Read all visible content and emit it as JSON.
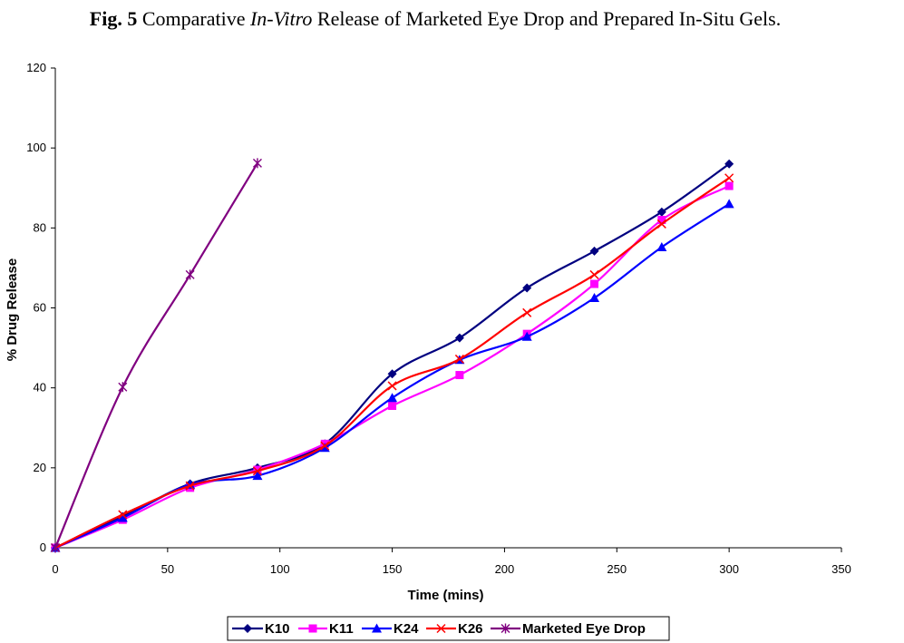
{
  "figure_title": {
    "label": "Fig. 5",
    "pre": " Comparative ",
    "italic": "In-Vitro",
    "post": " Release of Marketed Eye Drop and Prepared In-Situ Gels."
  },
  "chart_data": {
    "type": "line",
    "title": "Fig. 5 Comparative In-Vitro Release of Marketed Eye Drop and Prepared In-Situ Gels.",
    "xlabel": "Time (mins)",
    "ylabel": "% Drug Release",
    "xlim": [
      0,
      350
    ],
    "ylim": [
      0,
      120
    ],
    "xticks": [
      0,
      50,
      100,
      150,
      200,
      250,
      300,
      350
    ],
    "yticks": [
      0,
      20,
      40,
      60,
      80,
      100,
      120
    ],
    "grid": false,
    "legend_position": "bottom",
    "series": [
      {
        "name": "K10",
        "color": "#000080",
        "marker": "diamond",
        "x": [
          0,
          30,
          60,
          90,
          120,
          150,
          180,
          210,
          240,
          270,
          300
        ],
        "y": [
          0,
          7.8,
          16,
          20,
          26,
          43.5,
          52.5,
          65,
          74.2,
          84,
          96
        ]
      },
      {
        "name": "K11",
        "color": "#ff00ff",
        "marker": "square",
        "x": [
          0,
          30,
          60,
          90,
          120,
          150,
          180,
          210,
          240,
          270,
          300
        ],
        "y": [
          0,
          7,
          15,
          19.5,
          26,
          35.5,
          43.2,
          53.5,
          66,
          82,
          90.5
        ]
      },
      {
        "name": "K24",
        "color": "#0000ff",
        "marker": "triangle",
        "x": [
          0,
          30,
          60,
          90,
          120,
          150,
          180,
          210,
          240,
          270,
          300
        ],
        "y": [
          0,
          7.5,
          15.8,
          18,
          25,
          37.5,
          47,
          52.8,
          62.5,
          75.2,
          86
        ]
      },
      {
        "name": "K26",
        "color": "#ff0000",
        "marker": "x",
        "x": [
          0,
          30,
          60,
          90,
          120,
          150,
          180,
          210,
          240,
          270,
          300
        ],
        "y": [
          0,
          8.3,
          15.5,
          19.2,
          25.5,
          40.5,
          47.2,
          58.8,
          68.3,
          81,
          92.5
        ]
      },
      {
        "name": "Marketed Eye Drop",
        "color": "#800080",
        "marker": "star",
        "x": [
          0,
          30,
          60,
          90
        ],
        "y": [
          0,
          40.2,
          68.3,
          96.2
        ]
      }
    ]
  }
}
